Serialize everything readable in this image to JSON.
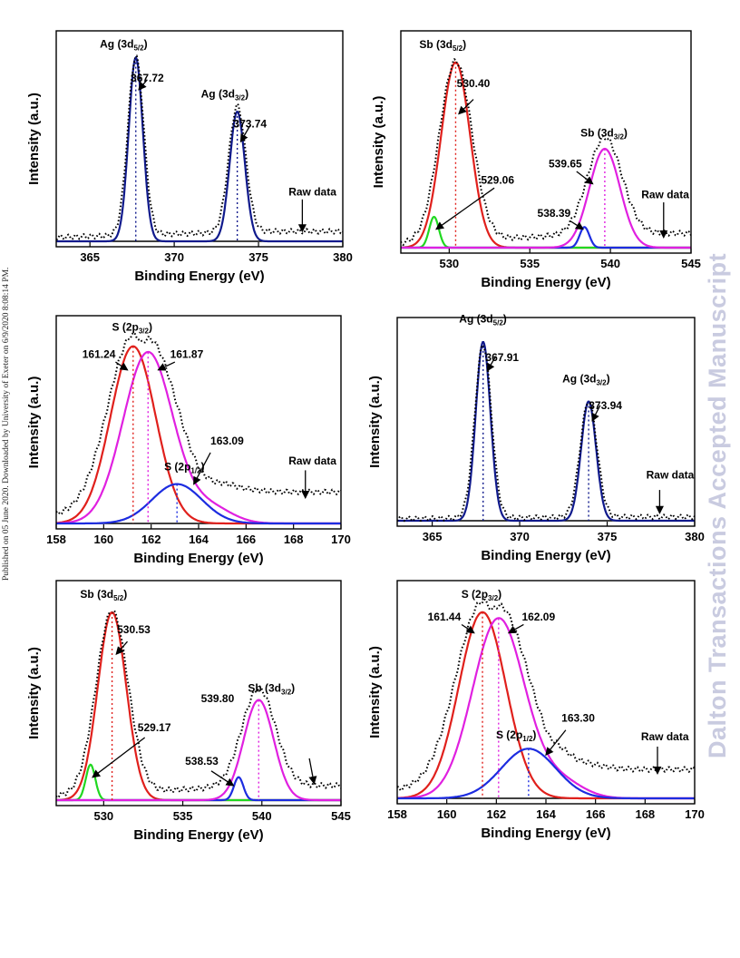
{
  "page": {
    "publication_note": "Published on 05 June 2020. Downloaded by University of Exeter on 6/9/2020 8:08:14 PM.",
    "watermark": "Dalton Transactions Accepted Manuscript"
  },
  "colors": {
    "red": "#e0201c",
    "blue": "#1c2ce0",
    "navy": "#101a8c",
    "magenta": "#e020e0",
    "green": "#20d820",
    "raw": "#000000",
    "baseline": "#000000"
  },
  "chart_data": [
    {
      "type": "line",
      "id": "ag-a",
      "xlabel": "Binding Energy (eV)",
      "ylabel": "Intensity (a.u.)",
      "xlim": [
        363,
        380
      ],
      "xticks": [
        365,
        370,
        375,
        380
      ],
      "series": [
        {
          "color": "navy",
          "peaks": [
            {
              "center": 367.72,
              "height": 0.92,
              "sigma": 0.42
            },
            {
              "center": 373.74,
              "height": 0.65,
              "sigma": 0.45
            }
          ]
        }
      ],
      "raw_data": {
        "offset": 0.02,
        "tail": 0.03
      },
      "peak_markers": [
        367.72,
        373.74
      ],
      "labels": [
        {
          "text": "Ag (3d",
          "sub": "5/2",
          "suffix": ")",
          "x": 367.0,
          "y": 0.97
        },
        {
          "text": "367.72",
          "x": 368.4,
          "y": 0.8
        },
        {
          "text": "Ag (3d",
          "sub": "3/2",
          "suffix": ")",
          "x": 373.0,
          "y": 0.72
        },
        {
          "text": "373.74",
          "x": 374.5,
          "y": 0.57
        },
        {
          "text": "Raw data",
          "x": 378.2,
          "y": 0.23
        }
      ],
      "arrows": [
        [
          368.4,
          0.81,
          367.9,
          0.76
        ],
        [
          374.5,
          0.58,
          373.95,
          0.5
        ],
        [
          377.6,
          0.21,
          377.6,
          0.05
        ]
      ]
    },
    {
      "type": "line",
      "id": "sb-a",
      "xlabel": "Binding Energy (eV)",
      "ylabel": "Intensity (a.u.)",
      "xlim": [
        527,
        545
      ],
      "xticks": [
        530,
        535,
        540,
        545
      ],
      "series": [
        {
          "color": "red",
          "peaks": [
            {
              "center": 530.4,
              "height": 0.9,
              "sigma": 0.9
            }
          ]
        },
        {
          "color": "green",
          "peaks": [
            {
              "center": 529.06,
              "height": 0.15,
              "sigma": 0.3
            }
          ]
        },
        {
          "color": "blue",
          "peaks": [
            {
              "center": 538.39,
              "height": 0.1,
              "sigma": 0.3
            }
          ]
        },
        {
          "color": "magenta",
          "peaks": [
            {
              "center": 539.65,
              "height": 0.48,
              "sigma": 0.95
            }
          ]
        }
      ],
      "raw_data": {
        "offset": 0.02,
        "tail": 0.05
      },
      "peak_markers": [
        530.4,
        539.65
      ],
      "labels": [
        {
          "text": "Sb (3d",
          "sub": "5/2",
          "suffix": ")",
          "x": 529.6,
          "y": 0.97
        },
        {
          "text": "530.40",
          "x": 531.5,
          "y": 0.78
        },
        {
          "text": "529.06",
          "x": 533.0,
          "y": 0.31
        },
        {
          "text": "539.65",
          "x": 537.2,
          "y": 0.39
        },
        {
          "text": "Sb (3d",
          "sub": "3/2",
          "suffix": ")",
          "x": 539.6,
          "y": 0.54
        },
        {
          "text": "538.39",
          "x": 536.5,
          "y": 0.15
        },
        {
          "text": "Raw data",
          "x": 543.4,
          "y": 0.24
        }
      ],
      "arrows": [
        [
          531.5,
          0.72,
          530.6,
          0.65
        ],
        [
          532.8,
          0.29,
          529.2,
          0.09
        ],
        [
          537.9,
          0.37,
          538.9,
          0.31
        ],
        [
          537.5,
          0.13,
          538.3,
          0.09
        ],
        [
          543.3,
          0.22,
          543.3,
          0.05
        ]
      ]
    },
    {
      "type": "line",
      "id": "s-a",
      "xlabel": "Binding Energy (eV)",
      "ylabel": "Intensity (a.u.)",
      "xlim": [
        158,
        170
      ],
      "xticks": [
        158,
        160,
        162,
        164,
        166,
        168,
        170
      ],
      "series": [
        {
          "color": "red",
          "peaks": [
            {
              "center": 161.24,
              "height": 0.9,
              "sigma": 0.95
            }
          ]
        },
        {
          "color": "magenta",
          "peaks": [
            {
              "center": 161.87,
              "height": 0.87,
              "sigma": 1.05
            },
            {
              "center": 164.5,
              "height": 0.08,
              "sigma": 0.9
            }
          ]
        },
        {
          "color": "blue",
          "peaks": [
            {
              "center": 163.09,
              "height": 0.2,
              "sigma": 1.05
            }
          ]
        }
      ],
      "raw_data": {
        "offset": 0.04,
        "tail": 0.12
      },
      "peak_markers": [
        161.24,
        161.87,
        163.09
      ],
      "labels": [
        {
          "text": "S (2p",
          "sub": "3/2",
          "suffix": ")",
          "x": 161.2,
          "y": 0.98
        },
        {
          "text": "161.24",
          "x": 159.8,
          "y": 0.84
        },
        {
          "text": "161.87",
          "x": 163.5,
          "y": 0.84
        },
        {
          "text": "S (2p",
          "sub": "1/2",
          "suffix": ")",
          "x": 163.4,
          "y": 0.27
        },
        {
          "text": "163.09",
          "x": 165.2,
          "y": 0.4
        },
        {
          "text": "Raw data",
          "x": 168.8,
          "y": 0.3
        }
      ],
      "arrows": [
        [
          160.5,
          0.82,
          161.0,
          0.78
        ],
        [
          163.0,
          0.82,
          162.3,
          0.78
        ],
        [
          164.5,
          0.36,
          163.8,
          0.2
        ],
        [
          168.5,
          0.27,
          168.5,
          0.13
        ]
      ]
    },
    {
      "type": "line",
      "id": "ag-b",
      "xlabel": "Binding Energy (eV)",
      "ylabel": "Intensity (a.u.)",
      "xlim": [
        363,
        380
      ],
      "xticks": [
        365,
        370,
        375,
        380
      ],
      "series": [
        {
          "color": "navy",
          "peaks": [
            {
              "center": 367.91,
              "height": 0.93,
              "sigma": 0.42
            },
            {
              "center": 373.94,
              "height": 0.62,
              "sigma": 0.43
            }
          ]
        }
      ],
      "raw_data": {
        "offset": 0.01,
        "tail": 0.01
      },
      "peak_markers": [
        367.91,
        373.94
      ],
      "labels": [
        {
          "text": "Ag (3d",
          "sub": "5/2",
          "suffix": ")",
          "x": 367.9,
          "y": 1.03
        },
        {
          "text": "367.91",
          "x": 369.0,
          "y": 0.83
        },
        {
          "text": "Ag (3d",
          "sub": "3/2",
          "suffix": ")",
          "x": 373.8,
          "y": 0.72
        },
        {
          "text": "373.94",
          "x": 374.9,
          "y": 0.58
        },
        {
          "text": "Raw data",
          "x": 378.6,
          "y": 0.22
        }
      ],
      "arrows": [
        [
          368.6,
          0.85,
          368.15,
          0.78
        ],
        [
          374.6,
          0.6,
          374.15,
          0.52
        ],
        [
          378.0,
          0.16,
          378.0,
          0.04
        ]
      ]
    },
    {
      "type": "line",
      "id": "sb-b",
      "xlabel": "Binding Energy (eV)",
      "ylabel": "Intensity (a.u.)",
      "xlim": [
        527,
        545
      ],
      "xticks": [
        530,
        535,
        540,
        545
      ],
      "series": [
        {
          "color": "red",
          "peaks": [
            {
              "center": 530.53,
              "height": 0.9,
              "sigma": 0.9
            }
          ]
        },
        {
          "color": "green",
          "peaks": [
            {
              "center": 529.17,
              "height": 0.17,
              "sigma": 0.3
            }
          ]
        },
        {
          "color": "blue",
          "peaks": [
            {
              "center": 538.53,
              "height": 0.11,
              "sigma": 0.3
            }
          ]
        },
        {
          "color": "magenta",
          "peaks": [
            {
              "center": 539.8,
              "height": 0.48,
              "sigma": 0.95
            }
          ]
        }
      ],
      "raw_data": {
        "offset": 0.02,
        "tail": 0.05
      },
      "peak_markers": [
        530.53,
        539.8
      ],
      "labels": [
        {
          "text": "Sb (3d",
          "sub": "5/2",
          "suffix": ")",
          "x": 530.0,
          "y": 0.97
        },
        {
          "text": "530.53",
          "x": 531.9,
          "y": 0.8
        },
        {
          "text": "529.17",
          "x": 533.2,
          "y": 0.33
        },
        {
          "text": "539.80",
          "x": 537.2,
          "y": 0.47
        },
        {
          "text": "Sb (3d",
          "sub": "3/2",
          "suffix": ")",
          "x": 540.6,
          "y": 0.52
        },
        {
          "text": "538.53",
          "x": 536.2,
          "y": 0.17
        }
      ],
      "arrows": [
        [
          531.5,
          0.76,
          530.8,
          0.7
        ],
        [
          532.6,
          0.3,
          529.3,
          0.11
        ],
        [
          536.8,
          0.14,
          538.2,
          0.07
        ],
        [
          543.0,
          0.2,
          543.3,
          0.08
        ]
      ]
    },
    {
      "type": "line",
      "id": "s-b",
      "xlabel": "Binding Energy (eV)",
      "ylabel": "Intensity (a.u.)",
      "xlim": [
        158,
        170
      ],
      "xticks": [
        158,
        160,
        162,
        164,
        166,
        168,
        170
      ],
      "series": [
        {
          "color": "red",
          "peaks": [
            {
              "center": 161.44,
              "height": 0.9,
              "sigma": 0.95
            }
          ]
        },
        {
          "color": "magenta",
          "peaks": [
            {
              "center": 162.09,
              "height": 0.87,
              "sigma": 1.05
            },
            {
              "center": 164.6,
              "height": 0.08,
              "sigma": 0.9
            }
          ]
        },
        {
          "color": "blue",
          "peaks": [
            {
              "center": 163.3,
              "height": 0.24,
              "sigma": 1.1
            }
          ]
        }
      ],
      "raw_data": {
        "offset": 0.04,
        "tail": 0.1
      },
      "peak_markers": [
        161.44,
        162.09,
        163.3
      ],
      "labels": [
        {
          "text": "S (2p",
          "sub": "3/2",
          "suffix": ")",
          "x": 161.4,
          "y": 0.97
        },
        {
          "text": "161.44",
          "x": 159.9,
          "y": 0.86
        },
        {
          "text": "162.09",
          "x": 163.7,
          "y": 0.86
        },
        {
          "text": "S (2p",
          "sub": "1/2",
          "suffix": ")",
          "x": 162.8,
          "y": 0.29
        },
        {
          "text": "163.30",
          "x": 165.3,
          "y": 0.37
        },
        {
          "text": "Raw data",
          "x": 168.8,
          "y": 0.28
        }
      ],
      "arrows": [
        [
          160.6,
          0.84,
          161.1,
          0.8
        ],
        [
          163.1,
          0.84,
          162.5,
          0.8
        ],
        [
          164.8,
          0.33,
          164.0,
          0.21
        ],
        [
          168.5,
          0.25,
          168.5,
          0.12
        ]
      ]
    }
  ]
}
